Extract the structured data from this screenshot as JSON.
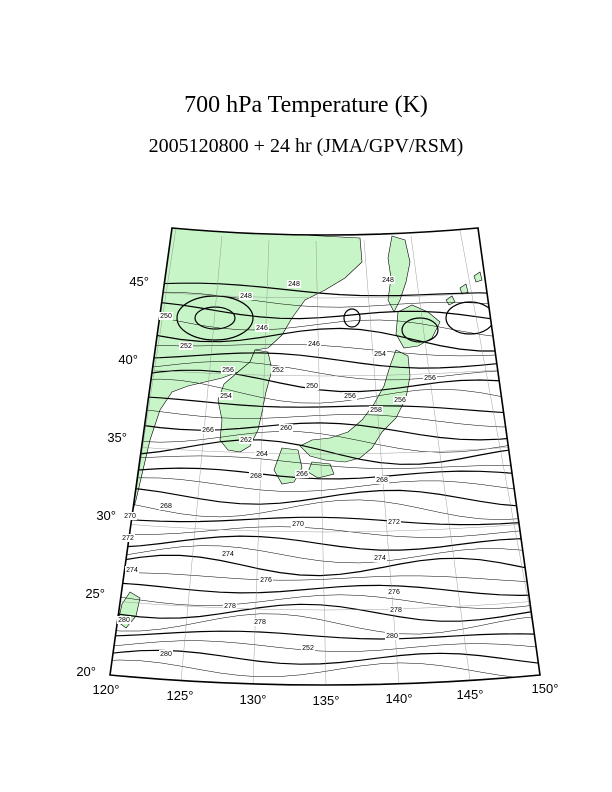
{
  "title": "700 hPa Temperature (K)",
  "subtitle": "2005120800 + 24 hr (JMA/GPV/RSM)",
  "map": {
    "land_color": "#c8f5c8",
    "lon_labels": [
      "120°",
      "125°",
      "130°",
      "135°",
      "140°",
      "145°",
      "150°"
    ],
    "lat_labels": [
      "20°",
      "25°",
      "30°",
      "35°",
      "40°",
      "45°"
    ],
    "contour_labels": [
      "248",
      "248",
      "248",
      "250",
      "252",
      "246",
      "246",
      "250",
      "256",
      "252",
      "256",
      "254",
      "256",
      "258",
      "260",
      "262",
      "264",
      "266",
      "266",
      "268",
      "268",
      "268",
      "270",
      "270",
      "272",
      "272",
      "274",
      "274",
      "274",
      "276",
      "276",
      "278",
      "278",
      "278",
      "280",
      "280",
      "280",
      "252",
      "256",
      "254"
    ]
  }
}
